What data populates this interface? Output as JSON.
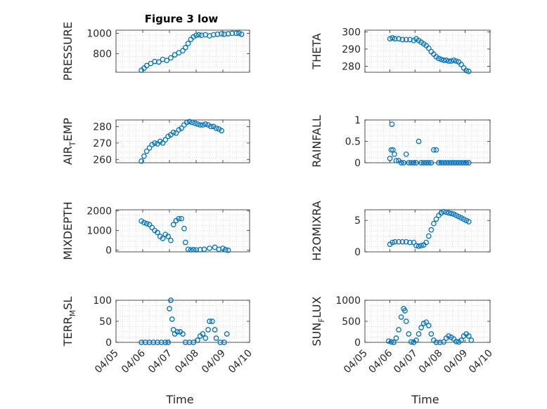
{
  "figure_title": "Figure 3 low",
  "marker_color": "#0072BD",
  "grid": "dotted minor",
  "x_tick_labels": [
    "04/05",
    "04/06",
    "04/07",
    "04/08",
    "04/09",
    "04/10"
  ],
  "x_label": "Time",
  "chart_data": [
    {
      "type": "scatter",
      "marker": "circle",
      "ylabel": "PRESSURE",
      "xlim": [
        0,
        5
      ],
      "ylim": [
        620,
        1030
      ],
      "yticks": [
        800,
        1000
      ],
      "series": [
        {
          "points": [
            [
              0.95,
              640
            ],
            [
              1.05,
              660
            ],
            [
              1.15,
              685
            ],
            [
              1.3,
              705
            ],
            [
              1.45,
              725
            ],
            [
              1.6,
              720
            ],
            [
              1.75,
              745
            ],
            [
              1.9,
              735
            ],
            [
              2.05,
              760
            ],
            [
              2.2,
              790
            ],
            [
              2.35,
              810
            ],
            [
              2.5,
              830
            ],
            [
              2.6,
              860
            ],
            [
              2.7,
              900
            ],
            [
              2.8,
              940
            ],
            [
              2.9,
              965
            ],
            [
              3.0,
              980
            ],
            [
              3.1,
              985
            ],
            [
              3.2,
              980
            ],
            [
              3.35,
              985
            ],
            [
              3.5,
              975
            ],
            [
              3.65,
              985
            ],
            [
              3.8,
              990
            ],
            [
              3.95,
              995
            ],
            [
              4.05,
              990
            ],
            [
              4.2,
              995
            ],
            [
              4.35,
              1000
            ],
            [
              4.5,
              1000
            ],
            [
              4.6,
              1000
            ],
            [
              4.7,
              990
            ]
          ]
        }
      ]
    },
    {
      "type": "scatter",
      "marker": "circle",
      "ylabel": "THETA",
      "xlim": [
        0,
        5
      ],
      "ylim": [
        276.5,
        301
      ],
      "yticks": [
        280,
        290,
        300
      ],
      "series": [
        {
          "points": [
            [
              1.0,
              296
            ],
            [
              1.1,
              296.5
            ],
            [
              1.2,
              296
            ],
            [
              1.35,
              296
            ],
            [
              1.5,
              295.5
            ],
            [
              1.65,
              295.5
            ],
            [
              1.8,
              295.5
            ],
            [
              1.95,
              295
            ],
            [
              2.05,
              296
            ],
            [
              2.15,
              295
            ],
            [
              2.25,
              294
            ],
            [
              2.35,
              293
            ],
            [
              2.45,
              292
            ],
            [
              2.55,
              290.5
            ],
            [
              2.65,
              288.5
            ],
            [
              2.75,
              287
            ],
            [
              2.85,
              285.5
            ],
            [
              2.95,
              284.5
            ],
            [
              3.05,
              284
            ],
            [
              3.15,
              283.5
            ],
            [
              3.25,
              283.5
            ],
            [
              3.35,
              283
            ],
            [
              3.45,
              283
            ],
            [
              3.55,
              283.5
            ],
            [
              3.65,
              283
            ],
            [
              3.75,
              282.5
            ],
            [
              3.85,
              281
            ],
            [
              3.95,
              279
            ],
            [
              4.05,
              277.5
            ],
            [
              4.15,
              277
            ]
          ]
        }
      ]
    },
    {
      "type": "scatter",
      "marker": "circle",
      "ylabel": "AIR_TEMP",
      "xlim": [
        0,
        5
      ],
      "ylim": [
        258,
        284
      ],
      "yticks": [
        260,
        270,
        280
      ],
      "series": [
        {
          "points": [
            [
              0.95,
              259
            ],
            [
              1.05,
              262
            ],
            [
              1.15,
              265
            ],
            [
              1.25,
              267
            ],
            [
              1.35,
              269
            ],
            [
              1.45,
              270
            ],
            [
              1.55,
              269.5
            ],
            [
              1.65,
              271
            ],
            [
              1.75,
              270
            ],
            [
              1.85,
              272
            ],
            [
              1.95,
              274
            ],
            [
              2.05,
              275
            ],
            [
              2.15,
              276.5
            ],
            [
              2.25,
              276
            ],
            [
              2.35,
              278
            ],
            [
              2.45,
              279
            ],
            [
              2.55,
              281
            ],
            [
              2.65,
              282.5
            ],
            [
              2.75,
              283
            ],
            [
              2.85,
              282.5
            ],
            [
              2.95,
              282
            ],
            [
              3.05,
              281.5
            ],
            [
              3.15,
              281
            ],
            [
              3.25,
              281
            ],
            [
              3.35,
              281.5
            ],
            [
              3.45,
              281
            ],
            [
              3.55,
              280
            ],
            [
              3.65,
              280
            ],
            [
              3.75,
              279
            ],
            [
              3.85,
              278.5
            ],
            [
              3.95,
              277.5
            ]
          ]
        }
      ]
    },
    {
      "type": "scatter",
      "marker": "circle",
      "ylabel": "RAINFALL",
      "xlim": [
        0,
        5
      ],
      "ylim": [
        0,
        1
      ],
      "yticks": [
        0,
        0.5,
        1
      ],
      "series": [
        {
          "points": [
            [
              1.0,
              0.1
            ],
            [
              1.05,
              0.3
            ],
            [
              1.08,
              0.9
            ],
            [
              1.12,
              0.3
            ],
            [
              1.18,
              0.2
            ],
            [
              1.25,
              0.05
            ],
            [
              1.35,
              0.05
            ],
            [
              1.45,
              0.0
            ],
            [
              1.55,
              0.0
            ],
            [
              1.65,
              0.2
            ],
            [
              1.75,
              0.0
            ],
            [
              1.85,
              0.0
            ],
            [
              1.95,
              0.0
            ],
            [
              2.05,
              0.0
            ],
            [
              2.15,
              0.5
            ],
            [
              2.25,
              0.0
            ],
            [
              2.35,
              0.0
            ],
            [
              2.45,
              0.0
            ],
            [
              2.55,
              0.0
            ],
            [
              2.65,
              0.0
            ],
            [
              2.75,
              0.3
            ],
            [
              2.85,
              0.3
            ],
            [
              2.95,
              0.0
            ],
            [
              3.05,
              0.0
            ],
            [
              3.15,
              0.0
            ],
            [
              3.25,
              0.0
            ],
            [
              3.35,
              0.0
            ],
            [
              3.45,
              0.0
            ],
            [
              3.55,
              0.0
            ],
            [
              3.65,
              0.0
            ],
            [
              3.75,
              0.0
            ],
            [
              3.85,
              0.0
            ],
            [
              3.95,
              0.0
            ],
            [
              4.05,
              0.0
            ],
            [
              4.15,
              0.0
            ]
          ]
        }
      ]
    },
    {
      "type": "scatter",
      "marker": "circle",
      "ylabel": "MIXDEPTH",
      "xlim": [
        0,
        5
      ],
      "ylim": [
        -80,
        2050
      ],
      "yticks": [
        0,
        1000,
        2000
      ],
      "series": [
        {
          "points": [
            [
              0.95,
              1480
            ],
            [
              1.05,
              1400
            ],
            [
              1.15,
              1350
            ],
            [
              1.25,
              1300
            ],
            [
              1.35,
              1150
            ],
            [
              1.45,
              1000
            ],
            [
              1.55,
              900
            ],
            [
              1.65,
              700
            ],
            [
              1.75,
              600
            ],
            [
              1.85,
              800
            ],
            [
              1.95,
              700
            ],
            [
              2.05,
              500
            ],
            [
              2.15,
              1300
            ],
            [
              2.25,
              1500
            ],
            [
              2.35,
              1600
            ],
            [
              2.45,
              1600
            ],
            [
              2.55,
              1100
            ],
            [
              2.6,
              400
            ],
            [
              2.7,
              50
            ],
            [
              2.8,
              20
            ],
            [
              2.9,
              30
            ],
            [
              3.0,
              20
            ],
            [
              3.15,
              30
            ],
            [
              3.3,
              50
            ],
            [
              3.5,
              100
            ],
            [
              3.7,
              150
            ],
            [
              3.85,
              50
            ],
            [
              4.0,
              100
            ],
            [
              4.1,
              30
            ],
            [
              4.2,
              0
            ]
          ]
        }
      ]
    },
    {
      "type": "scatter",
      "marker": "circle",
      "ylabel": "H2OMIXRA",
      "xlim": [
        0,
        5
      ],
      "ylim": [
        0,
        6.7
      ],
      "yticks": [
        0,
        5
      ],
      "series": [
        {
          "points": [
            [
              1.0,
              1.2
            ],
            [
              1.1,
              1.5
            ],
            [
              1.2,
              1.6
            ],
            [
              1.35,
              1.6
            ],
            [
              1.5,
              1.6
            ],
            [
              1.65,
              1.6
            ],
            [
              1.8,
              1.5
            ],
            [
              1.95,
              1.5
            ],
            [
              2.05,
              1.0
            ],
            [
              2.15,
              0.9
            ],
            [
              2.25,
              1.0
            ],
            [
              2.35,
              1.1
            ],
            [
              2.45,
              1.5
            ],
            [
              2.55,
              2.5
            ],
            [
              2.65,
              3.5
            ],
            [
              2.75,
              4.5
            ],
            [
              2.85,
              5.2
            ],
            [
              2.95,
              5.8
            ],
            [
              3.05,
              6.2
            ],
            [
              3.15,
              6.4
            ],
            [
              3.25,
              6.3
            ],
            [
              3.35,
              6.2
            ],
            [
              3.45,
              6.1
            ],
            [
              3.55,
              6.0
            ],
            [
              3.65,
              5.8
            ],
            [
              3.75,
              5.6
            ],
            [
              3.85,
              5.4
            ],
            [
              3.95,
              5.2
            ],
            [
              4.05,
              5.0
            ],
            [
              4.15,
              4.8
            ]
          ]
        }
      ]
    },
    {
      "type": "scatter",
      "marker": "circle",
      "ylabel": "TERR_MSL",
      "xlim": [
        0,
        5
      ],
      "ylim": [
        0,
        100
      ],
      "yticks": [
        0,
        50,
        100
      ],
      "series": [
        {
          "points": [
            [
              0.95,
              0
            ],
            [
              1.1,
              0
            ],
            [
              1.25,
              0
            ],
            [
              1.4,
              0
            ],
            [
              1.55,
              0
            ],
            [
              1.7,
              0
            ],
            [
              1.85,
              0
            ],
            [
              1.95,
              0
            ],
            [
              2.0,
              80
            ],
            [
              2.05,
              100
            ],
            [
              2.1,
              55
            ],
            [
              2.15,
              30
            ],
            [
              2.2,
              20
            ],
            [
              2.3,
              25
            ],
            [
              2.4,
              25
            ],
            [
              2.5,
              20
            ],
            [
              2.6,
              0
            ],
            [
              2.75,
              0
            ],
            [
              2.9,
              0
            ],
            [
              3.05,
              5
            ],
            [
              3.15,
              15
            ],
            [
              3.25,
              20
            ],
            [
              3.35,
              10
            ],
            [
              3.45,
              30
            ],
            [
              3.5,
              50
            ],
            [
              3.6,
              50
            ],
            [
              3.7,
              30
            ],
            [
              3.75,
              10
            ],
            [
              3.9,
              0
            ],
            [
              4.05,
              0
            ],
            [
              4.15,
              20
            ]
          ]
        }
      ]
    },
    {
      "type": "scatter",
      "marker": "circle",
      "ylabel": "SUN_FLUX",
      "xlim": [
        0,
        5
      ],
      "ylim": [
        0,
        1000
      ],
      "yticks": [
        0,
        500,
        1000
      ],
      "series": [
        {
          "points": [
            [
              0.95,
              30
            ],
            [
              1.05,
              10
            ],
            [
              1.15,
              0
            ],
            [
              1.25,
              100
            ],
            [
              1.35,
              300
            ],
            [
              1.45,
              600
            ],
            [
              1.55,
              800
            ],
            [
              1.6,
              750
            ],
            [
              1.65,
              500
            ],
            [
              1.75,
              200
            ],
            [
              1.85,
              10
            ],
            [
              1.95,
              0
            ],
            [
              2.05,
              50
            ],
            [
              2.15,
              200
            ],
            [
              2.25,
              350
            ],
            [
              2.35,
              450
            ],
            [
              2.45,
              480
            ],
            [
              2.55,
              400
            ],
            [
              2.65,
              200
            ],
            [
              2.75,
              50
            ],
            [
              2.85,
              0
            ],
            [
              3.0,
              0
            ],
            [
              3.15,
              10
            ],
            [
              3.25,
              100
            ],
            [
              3.35,
              150
            ],
            [
              3.45,
              120
            ],
            [
              3.55,
              80
            ],
            [
              3.65,
              20
            ],
            [
              3.75,
              10
            ],
            [
              3.85,
              50
            ],
            [
              3.95,
              150
            ],
            [
              4.05,
              200
            ],
            [
              4.15,
              150
            ],
            [
              4.25,
              50
            ]
          ]
        }
      ]
    }
  ]
}
